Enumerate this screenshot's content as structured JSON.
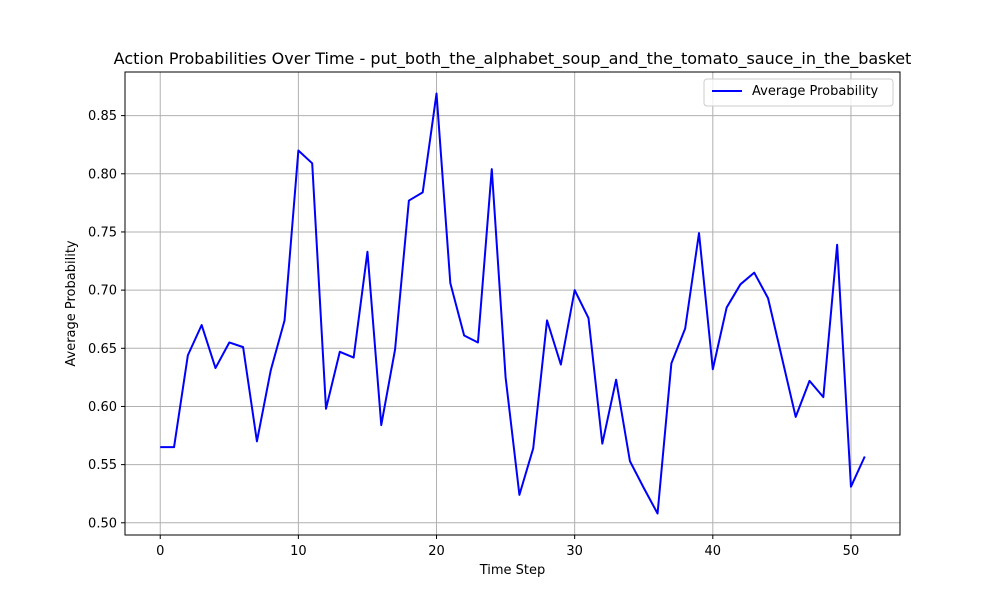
{
  "chart_data": {
    "type": "line",
    "title": "Action Probabilities Over Time - put_both_the_alphabet_soup_and_the_tomato_sauce_in_the_basket",
    "xlabel": "Time Step",
    "ylabel": "Average Probability",
    "xlim": [
      -2.55,
      53.55
    ],
    "ylim": [
      0.4895,
      0.8875
    ],
    "xticks": [
      0,
      10,
      20,
      30,
      40,
      50
    ],
    "yticks": [
      0.5,
      0.55,
      0.6,
      0.65,
      0.7,
      0.75,
      0.8,
      0.85
    ],
    "grid": true,
    "legend_position": "upper-right",
    "series": [
      {
        "name": "Average Probability",
        "color": "#0000ff",
        "x": [
          0,
          1,
          2,
          3,
          4,
          5,
          6,
          7,
          8,
          9,
          10,
          11,
          12,
          13,
          14,
          15,
          16,
          17,
          18,
          19,
          20,
          21,
          22,
          23,
          24,
          25,
          26,
          27,
          28,
          29,
          30,
          31,
          32,
          33,
          34,
          35,
          36,
          37,
          38,
          39,
          40,
          41,
          42,
          43,
          44,
          45,
          46,
          47,
          48,
          49,
          50,
          51
        ],
        "y": [
          0.565,
          0.565,
          0.644,
          0.67,
          0.633,
          0.655,
          0.651,
          0.57,
          0.631,
          0.674,
          0.82,
          0.809,
          0.598,
          0.647,
          0.642,
          0.733,
          0.584,
          0.649,
          0.777,
          0.784,
          0.869,
          0.706,
          0.661,
          0.655,
          0.804,
          0.625,
          0.524,
          0.564,
          0.674,
          0.636,
          0.7,
          0.676,
          0.568,
          0.623,
          0.553,
          0.53,
          0.508,
          0.637,
          0.667,
          0.749,
          0.632,
          0.685,
          0.705,
          0.715,
          0.693,
          0.642,
          0.591,
          0.622,
          0.608,
          0.739,
          0.531,
          0.557
        ]
      }
    ]
  }
}
